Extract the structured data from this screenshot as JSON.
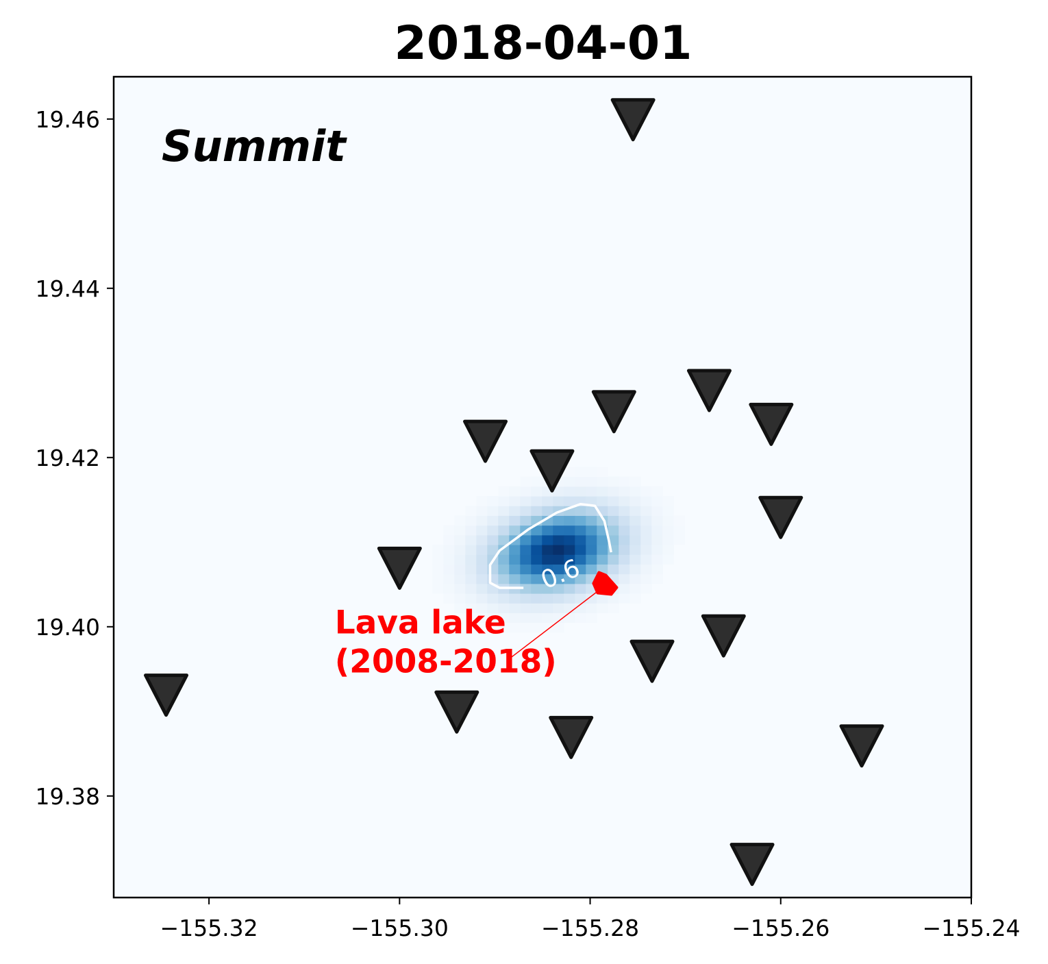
{
  "chart_data": {
    "type": "heatmap",
    "title": "2018-04-01",
    "panel_label": "Summit",
    "xlim": [
      -155.33,
      -155.24
    ],
    "ylim": [
      19.368,
      19.465
    ],
    "x_ticks": [
      -155.32,
      -155.3,
      -155.28,
      -155.26,
      -155.24
    ],
    "x_tick_labels": [
      "−155.32",
      "−155.30",
      "−155.28",
      "−155.26",
      "−155.24"
    ],
    "y_ticks": [
      19.38,
      19.4,
      19.42,
      19.44,
      19.46
    ],
    "y_tick_labels": [
      "19.38",
      "19.40",
      "19.42",
      "19.44",
      "19.46"
    ],
    "grid": false,
    "colormap": "Blues",
    "density": {
      "center": [
        -155.2835,
        19.409
      ],
      "sigma_x": 0.0045,
      "sigma_y": 0.003,
      "tilt_deg": 18,
      "cell_size": 0.00115
    },
    "contour": {
      "level_label": "0.6",
      "color": "#ffffff",
      "path": [
        [
          -155.287,
          19.4046
        ],
        [
          -155.2895,
          19.4046
        ],
        [
          -155.2905,
          19.4052
        ],
        [
          -155.2905,
          19.4073
        ],
        [
          -155.2895,
          19.409
        ],
        [
          -155.2865,
          19.4115
        ],
        [
          -155.2835,
          19.4135
        ],
        [
          -155.281,
          19.4145
        ],
        [
          -155.2795,
          19.4143
        ],
        [
          -155.2785,
          19.4125
        ],
        [
          -155.278,
          19.41
        ],
        [
          -155.2778,
          19.4088
        ]
      ]
    },
    "stations": {
      "marker": "inverted-triangle",
      "color": "#2e2e2e",
      "edge_color": "#111111",
      "points": [
        {
          "x": -155.2755,
          "y": 19.46
        },
        {
          "x": -155.2675,
          "y": 19.428
        },
        {
          "x": -155.2775,
          "y": 19.4255
        },
        {
          "x": -155.261,
          "y": 19.424
        },
        {
          "x": -155.291,
          "y": 19.422
        },
        {
          "x": -155.284,
          "y": 19.4185
        },
        {
          "x": -155.26,
          "y": 19.413
        },
        {
          "x": -155.3,
          "y": 19.407
        },
        {
          "x": -155.266,
          "y": 19.399
        },
        {
          "x": -155.2735,
          "y": 19.396
        },
        {
          "x": -155.3245,
          "y": 19.392
        },
        {
          "x": -155.294,
          "y": 19.39
        },
        {
          "x": -155.282,
          "y": 19.387
        },
        {
          "x": -155.2515,
          "y": 19.386
        },
        {
          "x": -155.263,
          "y": 19.372
        }
      ]
    },
    "annotation": {
      "lines": [
        "Lava lake",
        "(2008-2018)"
      ],
      "color": "#ff0000",
      "text_pos": [
        -155.3068,
        19.3992
      ],
      "point": [
        -155.2785,
        19.4048
      ],
      "arrow_start": [
        -155.2885,
        19.3962
      ]
    }
  }
}
